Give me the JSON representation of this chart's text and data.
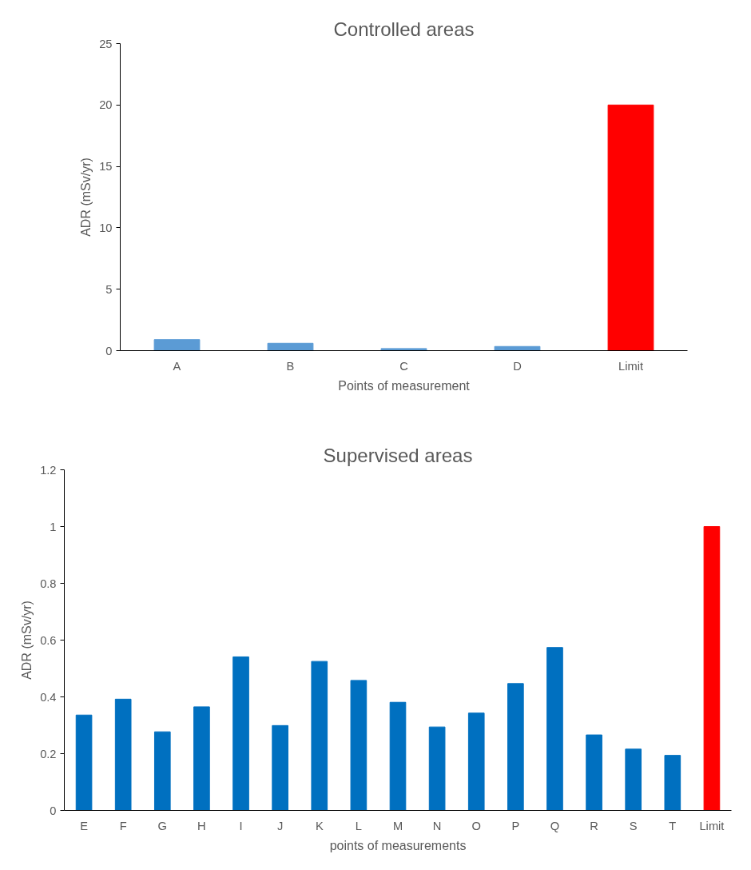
{
  "chart_data": [
    {
      "type": "bar",
      "title": "Controlled areas",
      "xlabel": "Points of measurement",
      "ylabel": "ADR (mSv/yr)",
      "categories": [
        "A",
        "B",
        "C",
        "D",
        "Limit"
      ],
      "values": [
        0.9,
        0.6,
        0.17,
        0.34,
        20
      ],
      "colors": [
        "#5b9bd5",
        "#5b9bd5",
        "#5b9bd5",
        "#5b9bd5",
        "#ff0000"
      ],
      "ylim": [
        0,
        25
      ],
      "yticks": [
        0,
        5,
        10,
        15,
        20,
        25
      ],
      "grid": false,
      "legend": false
    },
    {
      "type": "bar",
      "title": "Supervised areas",
      "xlabel": "points of measurements",
      "ylabel": "ADR (mSv/yr)",
      "categories": [
        "E",
        "F",
        "G",
        "H",
        "I",
        "J",
        "K",
        "L",
        "M",
        "N",
        "O",
        "P",
        "Q",
        "R",
        "S",
        "T",
        "Limit"
      ],
      "values": [
        0.336,
        0.392,
        0.277,
        0.365,
        0.541,
        0.299,
        0.525,
        0.458,
        0.381,
        0.294,
        0.343,
        0.447,
        0.574,
        0.266,
        0.216,
        0.194,
        1.0
      ],
      "colors": [
        "#0070c0",
        "#0070c0",
        "#0070c0",
        "#0070c0",
        "#0070c0",
        "#0070c0",
        "#0070c0",
        "#0070c0",
        "#0070c0",
        "#0070c0",
        "#0070c0",
        "#0070c0",
        "#0070c0",
        "#0070c0",
        "#0070c0",
        "#0070c0",
        "#ff0000"
      ],
      "ylim": [
        0,
        1.2
      ],
      "yticks": [
        0,
        {
          "value": 0.2,
          "label": "0.2"
        },
        {
          "value": 0.4,
          "label": "0.4"
        },
        {
          "value": 0.6,
          "label": "0.6"
        },
        {
          "value": 0.8,
          "label": "0.8"
        },
        1,
        {
          "value": 1.2,
          "label": "1.2"
        }
      ],
      "grid": false,
      "legend": false
    }
  ]
}
